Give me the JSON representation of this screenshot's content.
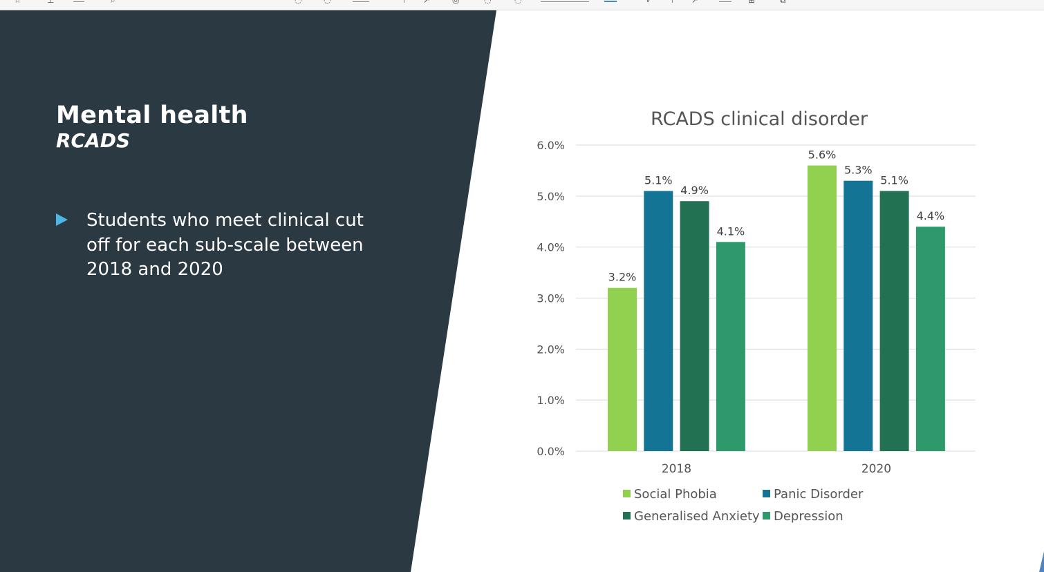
{
  "slide": {
    "title": "Mental health",
    "subtitle": "RCADS",
    "bullet": "Students who meet clinical cut off for each sub-scale between 2018 and 2020"
  },
  "toolbar": {
    "icons": [
      "star-icon",
      "pin-icon",
      "note-icon",
      "search-icon",
      "circle-icon",
      "circle-icon",
      "box-icon",
      "arrow-icon",
      "circle-icon",
      "circle-icon",
      "circle-icon",
      "bar-icon",
      "book-icon",
      "pen-icon",
      "arrow-icon",
      "table-icon",
      "chart-icon",
      "copy-icon"
    ]
  },
  "colors": {
    "panel": "#2b3a42",
    "social_phobia": "#92d050",
    "panic_disorder": "#137496",
    "generalised_anxiety": "#217152",
    "depression": "#2e9a6c",
    "bullet_arrow": "#4fb7e6",
    "grid": "#d9d9d9"
  },
  "chart_data": {
    "type": "bar",
    "title": "RCADS clinical disorder",
    "xlabel": "",
    "ylabel": "",
    "categories": [
      "2018",
      "2020"
    ],
    "series": [
      {
        "name": "Social Phobia",
        "values": [
          3.2,
          5.6
        ],
        "labels": [
          "3.2%",
          "5.6%"
        ]
      },
      {
        "name": "Panic Disorder",
        "values": [
          5.1,
          5.3
        ],
        "labels": [
          "5.1%",
          "5.3%"
        ]
      },
      {
        "name": "Generalised Anxiety",
        "values": [
          4.9,
          5.1
        ],
        "labels": [
          "4.9%",
          "5.1%"
        ]
      },
      {
        "name": "Depression",
        "values": [
          4.1,
          4.4
        ],
        "labels": [
          "4.1%",
          "4.4%"
        ]
      }
    ],
    "ylim": [
      0,
      6
    ],
    "yticks": [
      "0.0%",
      "1.0%",
      "2.0%",
      "3.0%",
      "4.0%",
      "5.0%",
      "6.0%"
    ],
    "grid": true,
    "legend": "bottom"
  }
}
